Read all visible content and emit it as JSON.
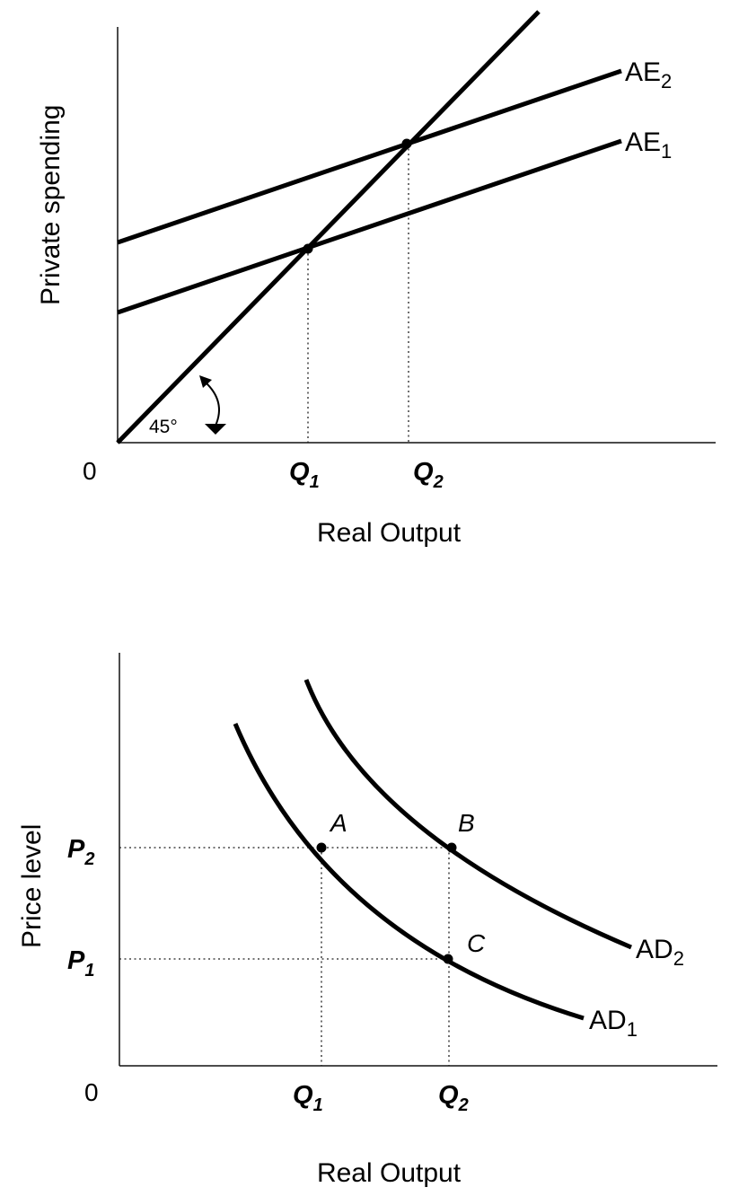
{
  "top_panel": {
    "y_label": "Private spending",
    "x_label": "Real Output",
    "origin": "0",
    "angle_label": "45°",
    "curves": [
      {
        "name": "AE",
        "sub": "2"
      },
      {
        "name": "AE",
        "sub": "1"
      }
    ],
    "ticks": [
      {
        "name": "Q",
        "sub": "1"
      },
      {
        "name": "Q",
        "sub": "2"
      }
    ]
  },
  "bottom_panel": {
    "y_label": "Price level",
    "x_label": "Real Output",
    "origin": "0",
    "curves": [
      {
        "name": "AD",
        "sub": "2"
      },
      {
        "name": "AD",
        "sub": "1"
      }
    ],
    "x_ticks": [
      {
        "name": "Q",
        "sub": "1"
      },
      {
        "name": "Q",
        "sub": "2"
      }
    ],
    "y_ticks": [
      {
        "name": "P",
        "sub": "2"
      },
      {
        "name": "P",
        "sub": "1"
      }
    ],
    "points": [
      "A",
      "B",
      "C"
    ]
  },
  "colors": {
    "line": "#000000",
    "background": "#ffffff"
  }
}
